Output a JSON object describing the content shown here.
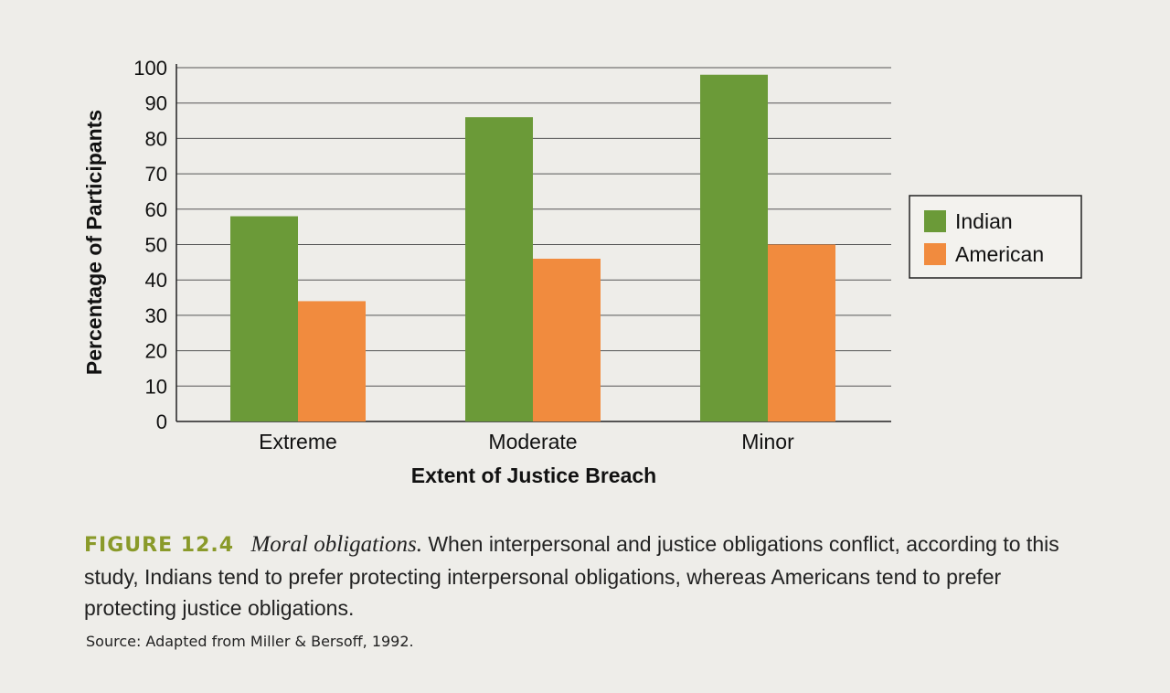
{
  "chart_data": {
    "type": "bar",
    "categories": [
      "Extreme",
      "Moderate",
      "Minor"
    ],
    "series": [
      {
        "name": "Indian",
        "values": [
          58,
          86,
          98
        ],
        "color": "#6b9a38"
      },
      {
        "name": "American",
        "values": [
          34,
          46,
          50
        ],
        "color": "#f18b3e"
      }
    ],
    "title": "",
    "xlabel": "Extent of Justice Breach",
    "ylabel": "Percentage of Participants",
    "ylim": [
      0,
      100
    ],
    "yticks": [
      "0",
      "10",
      "20",
      "30",
      "40",
      "50",
      "60",
      "70",
      "80",
      "90",
      "100"
    ],
    "grid": true,
    "legend_position": "right"
  },
  "caption": {
    "figure_label": "FIGURE 12.4",
    "figure_title": "Moral obligations.",
    "text": "When interpersonal and justice obligations conflict, according to this study, Indians tend to prefer protecting interpersonal obligations, whereas Americans tend to prefer protecting justice obligations.",
    "source": "Source: Adapted from Miller & Bersoff, 1992."
  }
}
